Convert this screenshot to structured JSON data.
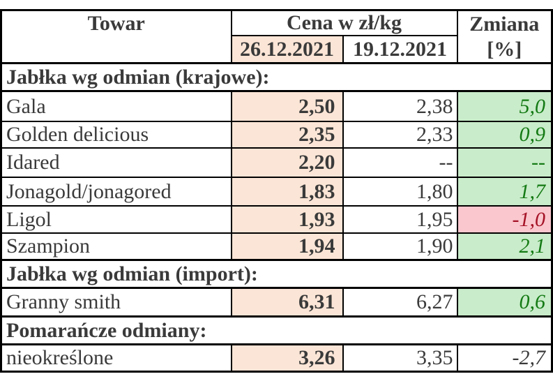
{
  "table": {
    "headers": {
      "product": "Towar",
      "price_group": "Cena w zł/kg",
      "date_new": "26.12.2021",
      "date_old": "19.12.2021",
      "change_line1": "Zmiana",
      "change_line2": "[%]"
    },
    "colors": {
      "highlight_column_bg": "#fbe5d6",
      "positive_bg": "#c9ecca",
      "positive_text": "#147a14",
      "negative_bg": "#fac7ce",
      "negative_text": "#a51226",
      "text": "#3a3a3a",
      "border": "#000000"
    },
    "sections": [
      {
        "title": "Jabłka wg odmian (krajowe):",
        "rows": [
          {
            "name": "Gala",
            "price_new": "2,50",
            "price_old": "2,38",
            "change": "5,0",
            "change_style": "positive"
          },
          {
            "name": "Golden delicious",
            "price_new": "2,35",
            "price_old": "2,33",
            "change": "0,9",
            "change_style": "positive"
          },
          {
            "name": "Idared",
            "price_new": "2,20",
            "price_old": "--",
            "change": "--",
            "change_style": "positive"
          },
          {
            "name": "Jonagold/jonagored",
            "price_new": "1,83",
            "price_old": "1,80",
            "change": "1,7",
            "change_style": "positive"
          },
          {
            "name": "Ligol",
            "price_new": "1,93",
            "price_old": "1,95",
            "change": "-1,0",
            "change_style": "negative"
          },
          {
            "name": "Szampion",
            "price_new": "1,94",
            "price_old": "1,90",
            "change": "2,1",
            "change_style": "positive"
          }
        ]
      },
      {
        "title": "Jabłka wg odmian (import):",
        "rows": [
          {
            "name": "Granny smith",
            "price_new": "6,31",
            "price_old": "6,27",
            "change": "0,6",
            "change_style": "positive"
          }
        ]
      },
      {
        "title": "Pomarańcze odmiany:",
        "rows": [
          {
            "name": "nieokreślone",
            "price_new": "3,26",
            "price_old": "3,35",
            "change": "-2,7",
            "change_style": "neutral"
          }
        ]
      }
    ]
  }
}
